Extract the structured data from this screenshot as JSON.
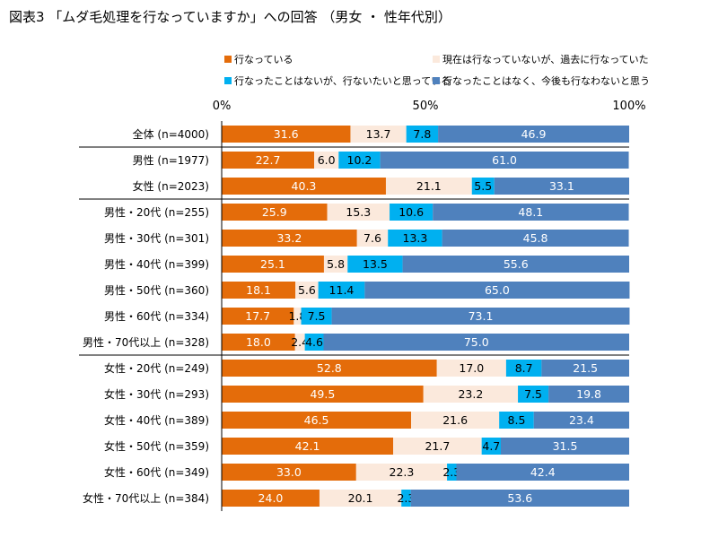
{
  "title": "図表3 「ムダ毛処理を行なっていますか」への回答 （男女 ・ 性年代別）",
  "chart_data": {
    "type": "bar",
    "orientation": "horizontal",
    "stacked": "percent",
    "axis_ticks": [
      "0%",
      "50%",
      "100%"
    ],
    "xlim": [
      0,
      100
    ],
    "legend_position": "top",
    "categories": [
      "全体 (n=4000)",
      "男性 (n=1977)",
      "女性 (n=2023)",
      "男性・20代 (n=255)",
      "男性・30代 (n=301)",
      "男性・40代 (n=399)",
      "男性・50代 (n=360)",
      "男性・60代 (n=334)",
      "男性・70代以上 (n=328)",
      "女性・20代 (n=249)",
      "女性・30代 (n=293)",
      "女性・40代 (n=389)",
      "女性・50代 (n=359)",
      "女性・60代 (n=349)",
      "女性・70代以上 (n=384)"
    ],
    "group_breaks_after": [
      0,
      2,
      8
    ],
    "series": [
      {
        "name": "行なっている",
        "color": "#E46C0A",
        "label_color": "#ffffff",
        "values": [
          31.6,
          22.7,
          40.3,
          25.9,
          33.2,
          25.1,
          18.1,
          17.7,
          18.0,
          52.8,
          49.5,
          46.5,
          42.1,
          33.0,
          24.0
        ],
        "labels": [
          "31.6",
          "22.7",
          "40.3",
          "25.9",
          "33.2",
          "25.1",
          "18.1",
          "17.7",
          "18.0",
          "52.8",
          "49.5",
          "46.5",
          "42.1",
          "33.0",
          "24.0"
        ]
      },
      {
        "name": "現在は行なっていないが、過去に行なっていた",
        "color": "#FBE9DC",
        "label_color": "#000000",
        "values": [
          13.7,
          6.0,
          21.1,
          15.3,
          7.6,
          5.8,
          5.6,
          1.8,
          2.4,
          17.0,
          23.2,
          21.6,
          21.7,
          22.3,
          20.1
        ],
        "labels": [
          "13.7",
          "6.0",
          "21.1",
          "15.3",
          "7.6",
          "5.8",
          "5.6",
          "1.8",
          "2.4",
          "17.0",
          "23.2",
          "21.6",
          "21.7",
          "22.3",
          "20.1"
        ]
      },
      {
        "name": "行なったことはないが、行ないたいと思っている",
        "color": "#00B0F0",
        "label_color": "#000000",
        "values": [
          7.8,
          10.2,
          5.5,
          10.6,
          13.3,
          13.5,
          11.4,
          7.5,
          4.6,
          8.7,
          7.5,
          8.5,
          4.7,
          2.3,
          2.3
        ],
        "labels": [
          "7.8",
          "10.2",
          "5.5",
          "10.6",
          "13.3",
          "13.5",
          "11.4",
          "7.5",
          "4.6",
          "8.7",
          "7.5",
          "8.5",
          "4.7",
          "2.3",
          "2.3"
        ]
      },
      {
        "name": "行なったことはなく、今後も行なわないと思う",
        "color": "#4F81BD",
        "label_color": "#ffffff",
        "values": [
          46.9,
          61.0,
          33.1,
          48.1,
          45.8,
          55.6,
          65.0,
          73.1,
          75.0,
          21.5,
          19.8,
          23.4,
          31.5,
          42.4,
          53.6
        ],
        "labels": [
          "46.9",
          "61.0",
          "33.1",
          "48.1",
          "45.8",
          "55.6",
          "65.0",
          "73.1",
          "75.0",
          "21.5",
          "19.8",
          "23.4",
          "31.5",
          "42.4",
          "53.6"
        ]
      }
    ]
  }
}
